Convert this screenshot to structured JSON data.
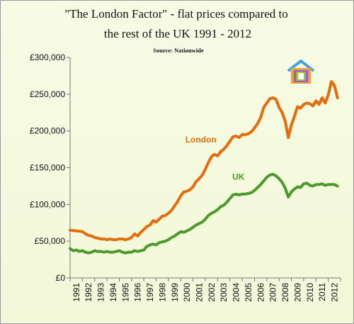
{
  "chart_data": {
    "type": "line",
    "title": "\"The London Factor\" - flat prices compared to",
    "title_line2": "the rest of the UK 1991 - 2012",
    "subtitle": "Source:  Nationwide",
    "xlabel": "",
    "ylabel": "",
    "ylim": [
      0,
      300000
    ],
    "xlim": [
      1991,
      2013
    ],
    "grid": false,
    "legend": "inline labels",
    "y_ticks": [
      {
        "value": 0,
        "label": "£0"
      },
      {
        "value": 50000,
        "label": "£50,000"
      },
      {
        "value": 100000,
        "label": "£100,000"
      },
      {
        "value": 150000,
        "label": "£150,000"
      },
      {
        "value": 200000,
        "label": "£200,000"
      },
      {
        "value": 250000,
        "label": "£250,000"
      },
      {
        "value": 300000,
        "label": "£300,000"
      }
    ],
    "x_ticks": [
      "1991",
      "1992",
      "1993",
      "1994",
      "1995",
      "1996",
      "1997",
      "1998",
      "1999",
      "2000",
      "2001",
      "2002",
      "2003",
      "2004",
      "2005",
      "2006",
      "2007",
      "2008",
      "2009",
      "2010",
      "2011",
      "2012"
    ],
    "series": [
      {
        "name": "London",
        "color": "#e46c0a",
        "points": [
          [
            1991.0,
            65000
          ],
          [
            1991.5,
            64000
          ],
          [
            1992.0,
            63000
          ],
          [
            1992.25,
            60000
          ],
          [
            1992.5,
            58000
          ],
          [
            1992.75,
            57000
          ],
          [
            1993.0,
            55000
          ],
          [
            1993.25,
            54000
          ],
          [
            1993.5,
            53000
          ],
          [
            1993.75,
            53000
          ],
          [
            1994.0,
            52000
          ],
          [
            1994.25,
            53000
          ],
          [
            1994.5,
            52000
          ],
          [
            1994.75,
            52000
          ],
          [
            1995.0,
            53000
          ],
          [
            1995.25,
            53000
          ],
          [
            1995.5,
            52000
          ],
          [
            1995.75,
            53000
          ],
          [
            1996.0,
            55000
          ],
          [
            1996.25,
            60000
          ],
          [
            1996.5,
            57000
          ],
          [
            1996.75,
            62000
          ],
          [
            1997.0,
            66000
          ],
          [
            1997.25,
            70000
          ],
          [
            1997.5,
            72000
          ],
          [
            1997.75,
            78000
          ],
          [
            1998.0,
            76000
          ],
          [
            1998.25,
            80000
          ],
          [
            1998.5,
            84000
          ],
          [
            1998.75,
            85000
          ],
          [
            1999.0,
            88000
          ],
          [
            1999.25,
            92000
          ],
          [
            1999.5,
            98000
          ],
          [
            1999.75,
            104000
          ],
          [
            2000.0,
            112000
          ],
          [
            2000.25,
            117000
          ],
          [
            2000.5,
            118000
          ],
          [
            2000.75,
            120000
          ],
          [
            2001.0,
            124000
          ],
          [
            2001.25,
            131000
          ],
          [
            2001.5,
            135000
          ],
          [
            2001.75,
            140000
          ],
          [
            2002.0,
            148000
          ],
          [
            2002.25,
            157000
          ],
          [
            2002.5,
            165000
          ],
          [
            2002.75,
            168000
          ],
          [
            2003.0,
            166000
          ],
          [
            2003.25,
            172000
          ],
          [
            2003.5,
            175000
          ],
          [
            2003.75,
            180000
          ],
          [
            2004.0,
            186000
          ],
          [
            2004.25,
            192000
          ],
          [
            2004.5,
            193000
          ],
          [
            2004.75,
            191000
          ],
          [
            2005.0,
            195000
          ],
          [
            2005.25,
            195000
          ],
          [
            2005.5,
            196000
          ],
          [
            2005.75,
            199000
          ],
          [
            2006.0,
            204000
          ],
          [
            2006.25,
            210000
          ],
          [
            2006.5,
            218000
          ],
          [
            2006.75,
            232000
          ],
          [
            2007.0,
            238000
          ],
          [
            2007.25,
            244000
          ],
          [
            2007.5,
            245000
          ],
          [
            2007.75,
            243000
          ],
          [
            2008.0,
            232000
          ],
          [
            2008.25,
            225000
          ],
          [
            2008.5,
            213000
          ],
          [
            2008.75,
            191000
          ],
          [
            2009.0,
            208000
          ],
          [
            2009.25,
            220000
          ],
          [
            2009.5,
            233000
          ],
          [
            2009.75,
            231000
          ],
          [
            2010.0,
            236000
          ],
          [
            2010.25,
            238000
          ],
          [
            2010.5,
            237000
          ],
          [
            2010.75,
            234000
          ],
          [
            2011.0,
            241000
          ],
          [
            2011.25,
            236000
          ],
          [
            2011.5,
            245000
          ],
          [
            2011.75,
            238000
          ],
          [
            2012.0,
            249000
          ],
          [
            2012.25,
            267000
          ],
          [
            2012.5,
            262000
          ],
          [
            2012.75,
            245000
          ]
        ]
      },
      {
        "name": "UK",
        "color": "#4c9a2a",
        "points": [
          [
            1991.0,
            40000
          ],
          [
            1991.25,
            37000
          ],
          [
            1991.5,
            38000
          ],
          [
            1991.75,
            36000
          ],
          [
            1992.0,
            37000
          ],
          [
            1992.25,
            35000
          ],
          [
            1992.5,
            34000
          ],
          [
            1992.75,
            35000
          ],
          [
            1993.0,
            37000
          ],
          [
            1993.25,
            36000
          ],
          [
            1993.5,
            36000
          ],
          [
            1993.75,
            35000
          ],
          [
            1994.0,
            36000
          ],
          [
            1994.25,
            35000
          ],
          [
            1994.5,
            35000
          ],
          [
            1994.75,
            36000
          ],
          [
            1995.0,
            37000
          ],
          [
            1995.25,
            35000
          ],
          [
            1995.5,
            34000
          ],
          [
            1995.75,
            35000
          ],
          [
            1996.0,
            35000
          ],
          [
            1996.25,
            37000
          ],
          [
            1996.5,
            36000
          ],
          [
            1996.75,
            37000
          ],
          [
            1997.0,
            38000
          ],
          [
            1997.25,
            43000
          ],
          [
            1997.5,
            45000
          ],
          [
            1997.75,
            46000
          ],
          [
            1998.0,
            45000
          ],
          [
            1998.25,
            48000
          ],
          [
            1998.5,
            49000
          ],
          [
            1998.75,
            50000
          ],
          [
            1999.0,
            52000
          ],
          [
            1999.25,
            55000
          ],
          [
            1999.5,
            57000
          ],
          [
            1999.75,
            60000
          ],
          [
            2000.0,
            63000
          ],
          [
            2000.25,
            62000
          ],
          [
            2000.5,
            64000
          ],
          [
            2000.75,
            66000
          ],
          [
            2001.0,
            69000
          ],
          [
            2001.25,
            72000
          ],
          [
            2001.5,
            74000
          ],
          [
            2001.75,
            76000
          ],
          [
            2002.0,
            80000
          ],
          [
            2002.25,
            85000
          ],
          [
            2002.5,
            88000
          ],
          [
            2002.75,
            90000
          ],
          [
            2003.0,
            93000
          ],
          [
            2003.25,
            97000
          ],
          [
            2003.5,
            99000
          ],
          [
            2003.75,
            103000
          ],
          [
            2004.0,
            108000
          ],
          [
            2004.25,
            113000
          ],
          [
            2004.5,
            114000
          ],
          [
            2004.75,
            113000
          ],
          [
            2005.0,
            114000
          ],
          [
            2005.25,
            114000
          ],
          [
            2005.5,
            115000
          ],
          [
            2005.75,
            116000
          ],
          [
            2006.0,
            119000
          ],
          [
            2006.25,
            123000
          ],
          [
            2006.5,
            127000
          ],
          [
            2006.75,
            132000
          ],
          [
            2007.0,
            137000
          ],
          [
            2007.25,
            140000
          ],
          [
            2007.5,
            141000
          ],
          [
            2007.75,
            139000
          ],
          [
            2008.0,
            135000
          ],
          [
            2008.25,
            130000
          ],
          [
            2008.5,
            122000
          ],
          [
            2008.75,
            110000
          ],
          [
            2009.0,
            117000
          ],
          [
            2009.25,
            121000
          ],
          [
            2009.5,
            124000
          ],
          [
            2009.75,
            123000
          ],
          [
            2010.0,
            128000
          ],
          [
            2010.25,
            129000
          ],
          [
            2010.5,
            126000
          ],
          [
            2010.75,
            125000
          ],
          [
            2011.0,
            127000
          ],
          [
            2011.25,
            127000
          ],
          [
            2011.5,
            128000
          ],
          [
            2011.75,
            126000
          ],
          [
            2012.0,
            127000
          ],
          [
            2012.25,
            127000
          ],
          [
            2012.5,
            127000
          ],
          [
            2012.75,
            125000
          ]
        ]
      }
    ],
    "logo_colors": {
      "roof": "#4aa3df",
      "outer": "#e8a33d",
      "middle": "#a855c7",
      "inner": "#8cc63f",
      "core": "#ffffff"
    }
  }
}
